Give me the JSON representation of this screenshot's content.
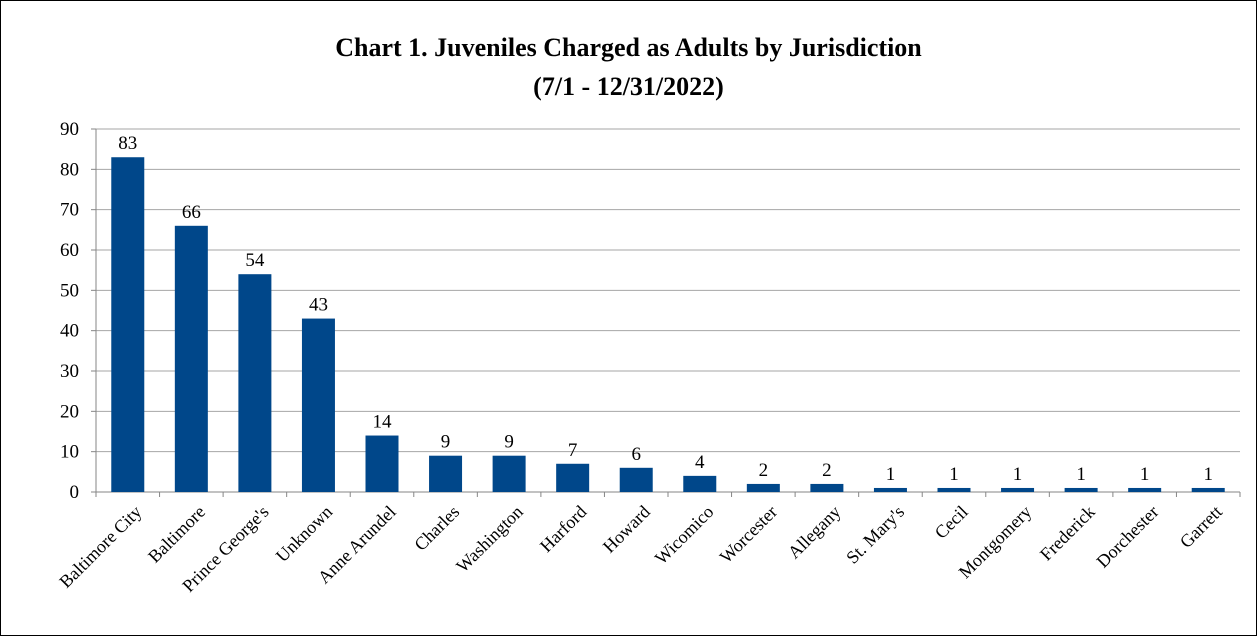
{
  "chart_data": {
    "type": "bar",
    "title": "Chart 1. Juveniles Charged as Adults by Jurisdiction",
    "subtitle": "(7/1 - 12/31/2022)",
    "xlabel": "",
    "ylabel": "",
    "ylim": [
      0,
      90
    ],
    "yticks": [
      0,
      10,
      20,
      30,
      40,
      50,
      60,
      70,
      80,
      90
    ],
    "grid": true,
    "legend": "none",
    "bar_color": "#00478A",
    "data_labels": true,
    "categories": [
      "Baltimore City",
      "Baltimore",
      "Prince George's",
      "Unknown",
      "Anne Arundel",
      "Charles",
      "Washington",
      "Harford",
      "Howard",
      "Wicomico",
      "Worcester",
      "Allegany",
      "St. Mary's",
      "Cecil",
      "Montgomery",
      "Frederick",
      "Dorchester",
      "Garrett"
    ],
    "values": [
      83,
      66,
      54,
      43,
      14,
      9,
      9,
      7,
      6,
      4,
      2,
      2,
      1,
      1,
      1,
      1,
      1,
      1
    ]
  }
}
